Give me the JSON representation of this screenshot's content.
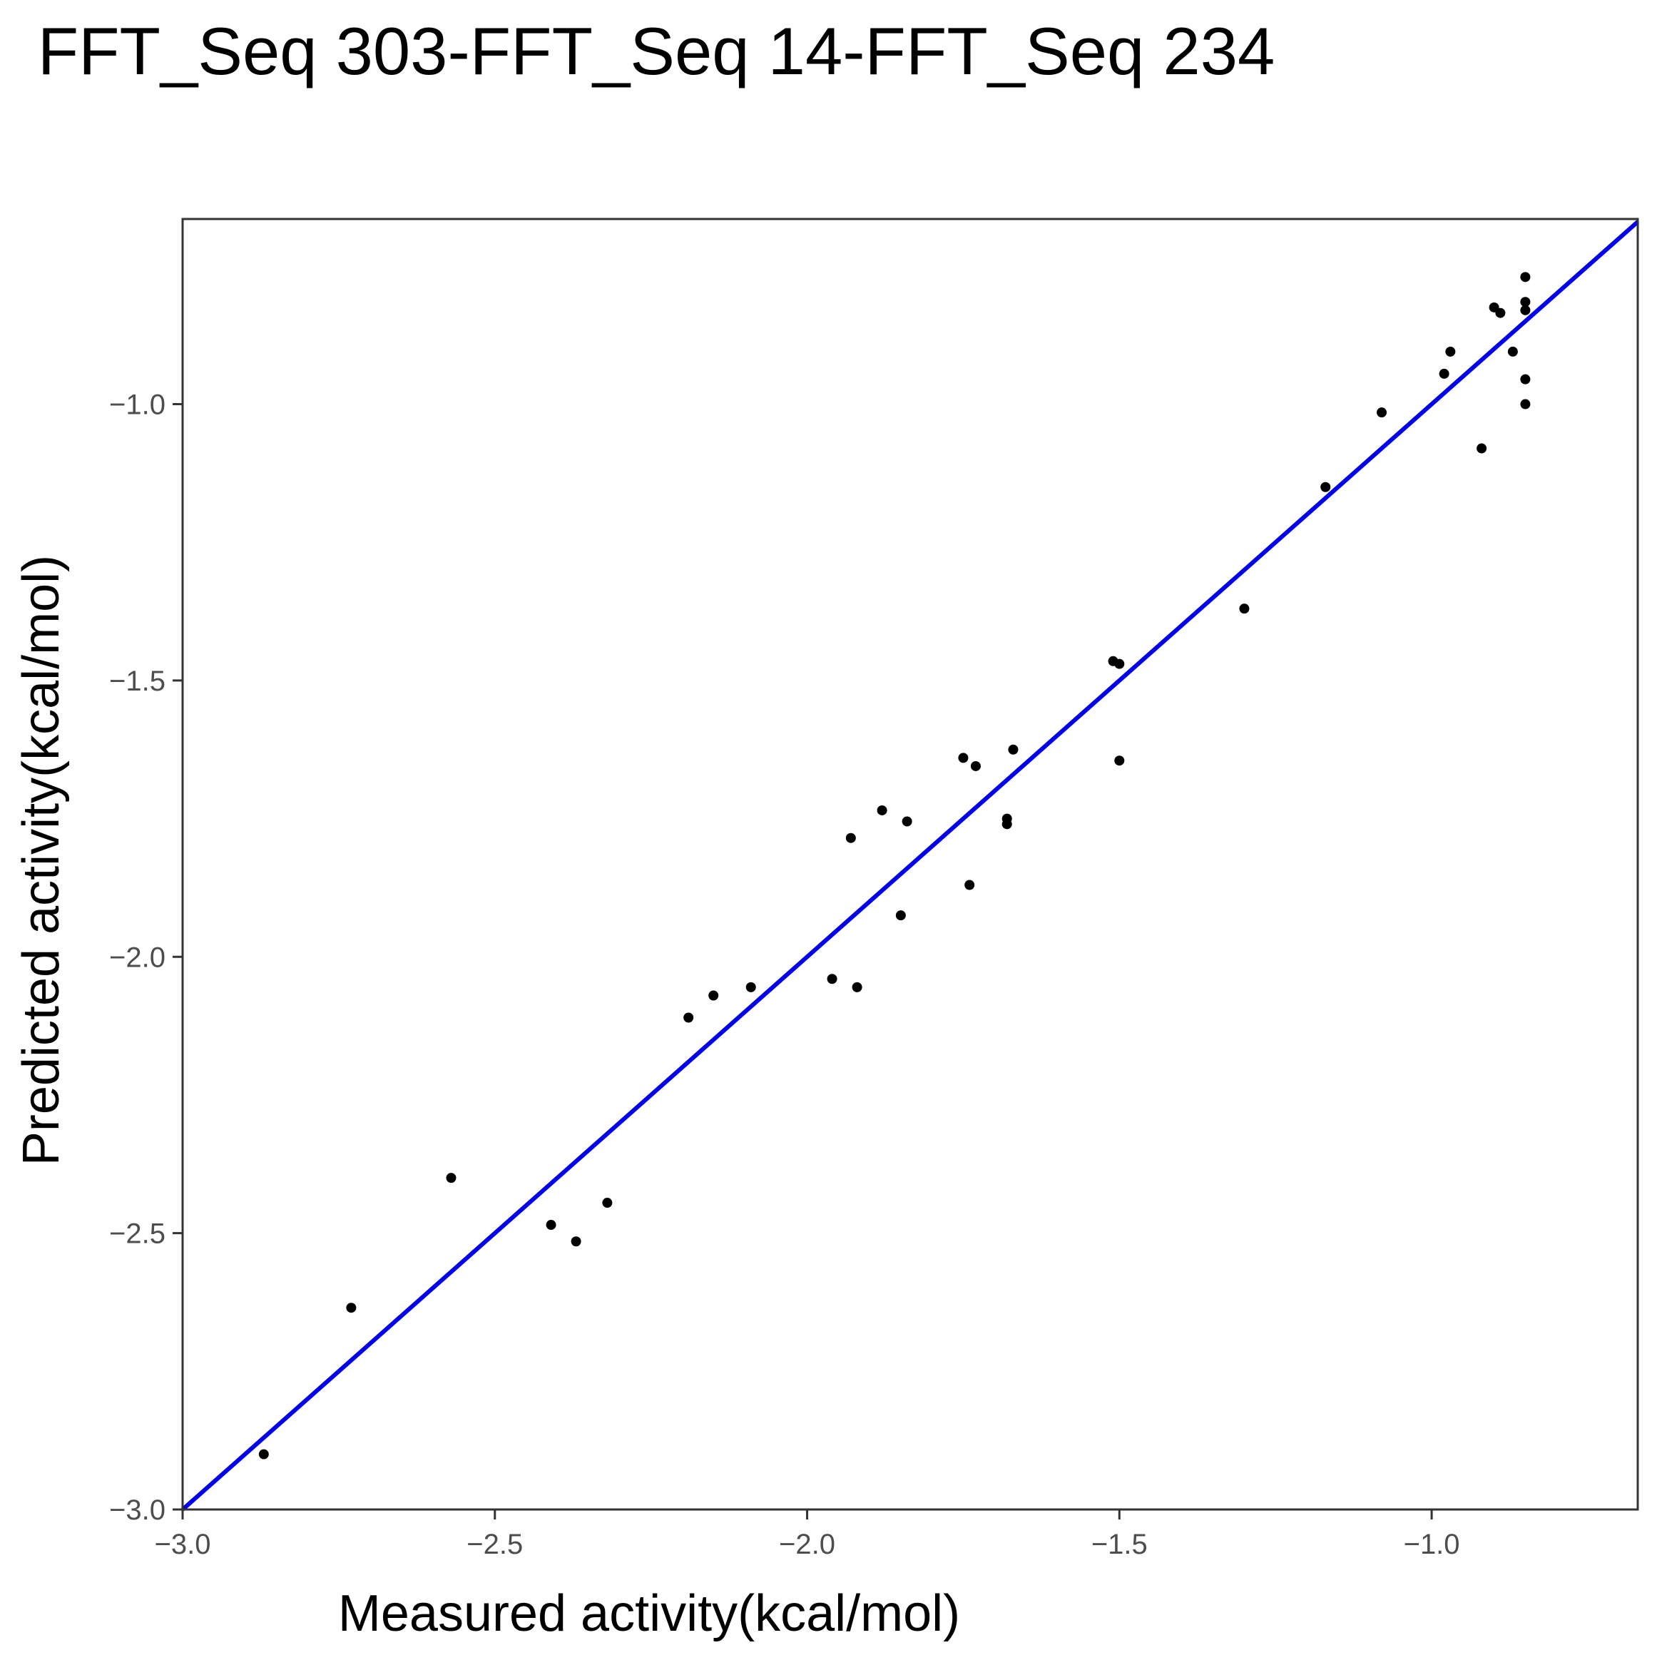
{
  "chart_data": {
    "type": "scatter",
    "title": "FFT_Seq 303-FFT_Seq 14-FFT_Seq 234",
    "xlabel": "Measured activity(kcal/mol)",
    "ylabel": "Predicted activity(kcal/mol)",
    "xlim": [
      -3.0,
      -0.67
    ],
    "ylim": [
      -3.0,
      -0.665
    ],
    "xticks": [
      -3.0,
      -2.5,
      -2.0,
      -1.5,
      -1.0
    ],
    "yticks": [
      -3.0,
      -2.5,
      -2.0,
      -1.5,
      -1.0
    ],
    "xtick_labels": [
      "−3.0",
      "−2.5",
      "−2.0",
      "−1.5",
      "−1.0"
    ],
    "ytick_labels": [
      "−3.0",
      "−2.5",
      "−2.0",
      "−1.5",
      "−1.0"
    ],
    "grid": false,
    "reference_line": {
      "kind": "y=x",
      "color": "#0000ee"
    },
    "point_color": "#000000",
    "points": [
      {
        "x": -2.87,
        "y": -2.9
      },
      {
        "x": -2.73,
        "y": -2.635
      },
      {
        "x": -2.57,
        "y": -2.4
      },
      {
        "x": -2.41,
        "y": -2.485
      },
      {
        "x": -2.37,
        "y": -2.515
      },
      {
        "x": -2.32,
        "y": -2.445
      },
      {
        "x": -2.19,
        "y": -2.11
      },
      {
        "x": -2.15,
        "y": -2.07
      },
      {
        "x": -2.09,
        "y": -2.055
      },
      {
        "x": -1.96,
        "y": -2.04
      },
      {
        "x": -1.92,
        "y": -2.055
      },
      {
        "x": -1.93,
        "y": -1.785
      },
      {
        "x": -1.88,
        "y": -1.735
      },
      {
        "x": -1.84,
        "y": -1.755
      },
      {
        "x": -1.85,
        "y": -1.925
      },
      {
        "x": -1.75,
        "y": -1.64
      },
      {
        "x": -1.73,
        "y": -1.655
      },
      {
        "x": -1.74,
        "y": -1.87
      },
      {
        "x": -1.67,
        "y": -1.625
      },
      {
        "x": -1.68,
        "y": -1.75
      },
      {
        "x": -1.68,
        "y": -1.76
      },
      {
        "x": -1.51,
        "y": -1.465
      },
      {
        "x": -1.5,
        "y": -1.47
      },
      {
        "x": -1.5,
        "y": -1.645
      },
      {
        "x": -1.3,
        "y": -1.37
      },
      {
        "x": -1.17,
        "y": -1.15
      },
      {
        "x": -1.08,
        "y": -1.015
      },
      {
        "x": -0.98,
        "y": -0.945
      },
      {
        "x": -0.97,
        "y": -0.905
      },
      {
        "x": -0.92,
        "y": -1.08
      },
      {
        "x": -0.9,
        "y": -0.825
      },
      {
        "x": -0.89,
        "y": -0.835
      },
      {
        "x": -0.87,
        "y": -0.905
      },
      {
        "x": -0.85,
        "y": -0.77
      },
      {
        "x": -0.85,
        "y": -0.815
      },
      {
        "x": -0.85,
        "y": -0.83
      },
      {
        "x": -0.85,
        "y": -0.955
      },
      {
        "x": -0.85,
        "y": -1.0
      }
    ]
  }
}
